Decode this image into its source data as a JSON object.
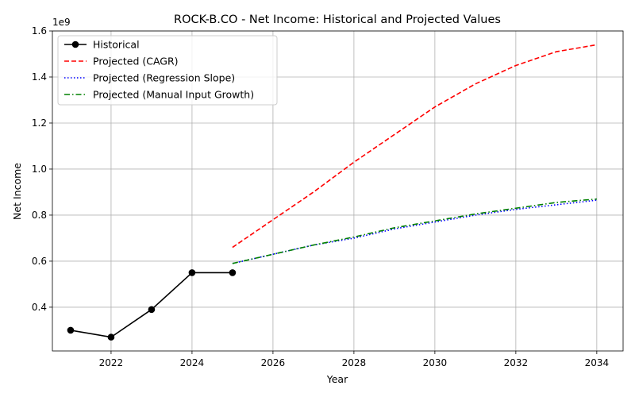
{
  "chart_data": {
    "type": "line",
    "title": "ROCK-B.CO - Net Income: Historical and Projected Values",
    "xlabel": "Year",
    "ylabel": "Net Income",
    "y_offset_label": "1e9",
    "xlim": [
      2020.55,
      2034.65
    ],
    "ylim": [
      0.21,
      1.6
    ],
    "x_ticks": [
      2022,
      2024,
      2026,
      2028,
      2030,
      2032,
      2034
    ],
    "y_ticks": [
      0.4,
      0.6,
      0.8,
      1.0,
      1.2,
      1.4,
      1.6
    ],
    "y_tick_labels": [
      "0.4",
      "0.6",
      "0.8",
      "1.0",
      "1.2",
      "1.4",
      "1.6"
    ],
    "grid": true,
    "legend_position": "upper-left",
    "series": [
      {
        "name": "Historical",
        "color": "#000000",
        "style": "solid",
        "marker": "circle",
        "x": [
          2021,
          2022,
          2023,
          2024,
          2025
        ],
        "y": [
          0.3,
          0.27,
          0.39,
          0.55,
          0.55
        ]
      },
      {
        "name": "Projected (CAGR)",
        "color": "#ff0000",
        "style": "dashed",
        "marker": "none",
        "x": [
          2025,
          2026,
          2027,
          2028,
          2029,
          2030,
          2031,
          2032,
          2033,
          2034
        ],
        "y": [
          0.66,
          0.78,
          0.9,
          1.03,
          1.15,
          1.27,
          1.37,
          1.45,
          1.51,
          1.54
        ]
      },
      {
        "name": "Projected (Regression Slope)",
        "color": "#0000ff",
        "style": "dotted",
        "marker": "none",
        "x": [
          2025,
          2026,
          2027,
          2028,
          2029,
          2030,
          2031,
          2032,
          2033,
          2034
        ],
        "y": [
          0.59,
          0.63,
          0.67,
          0.7,
          0.74,
          0.77,
          0.8,
          0.825,
          0.845,
          0.865
        ]
      },
      {
        "name": "Projected (Manual Input Growth)",
        "color": "#008000",
        "style": "dashdot",
        "marker": "none",
        "x": [
          2025,
          2026,
          2027,
          2028,
          2029,
          2030,
          2031,
          2032,
          2033,
          2034
        ],
        "y": [
          0.59,
          0.63,
          0.67,
          0.705,
          0.745,
          0.775,
          0.805,
          0.83,
          0.855,
          0.87
        ]
      }
    ]
  }
}
